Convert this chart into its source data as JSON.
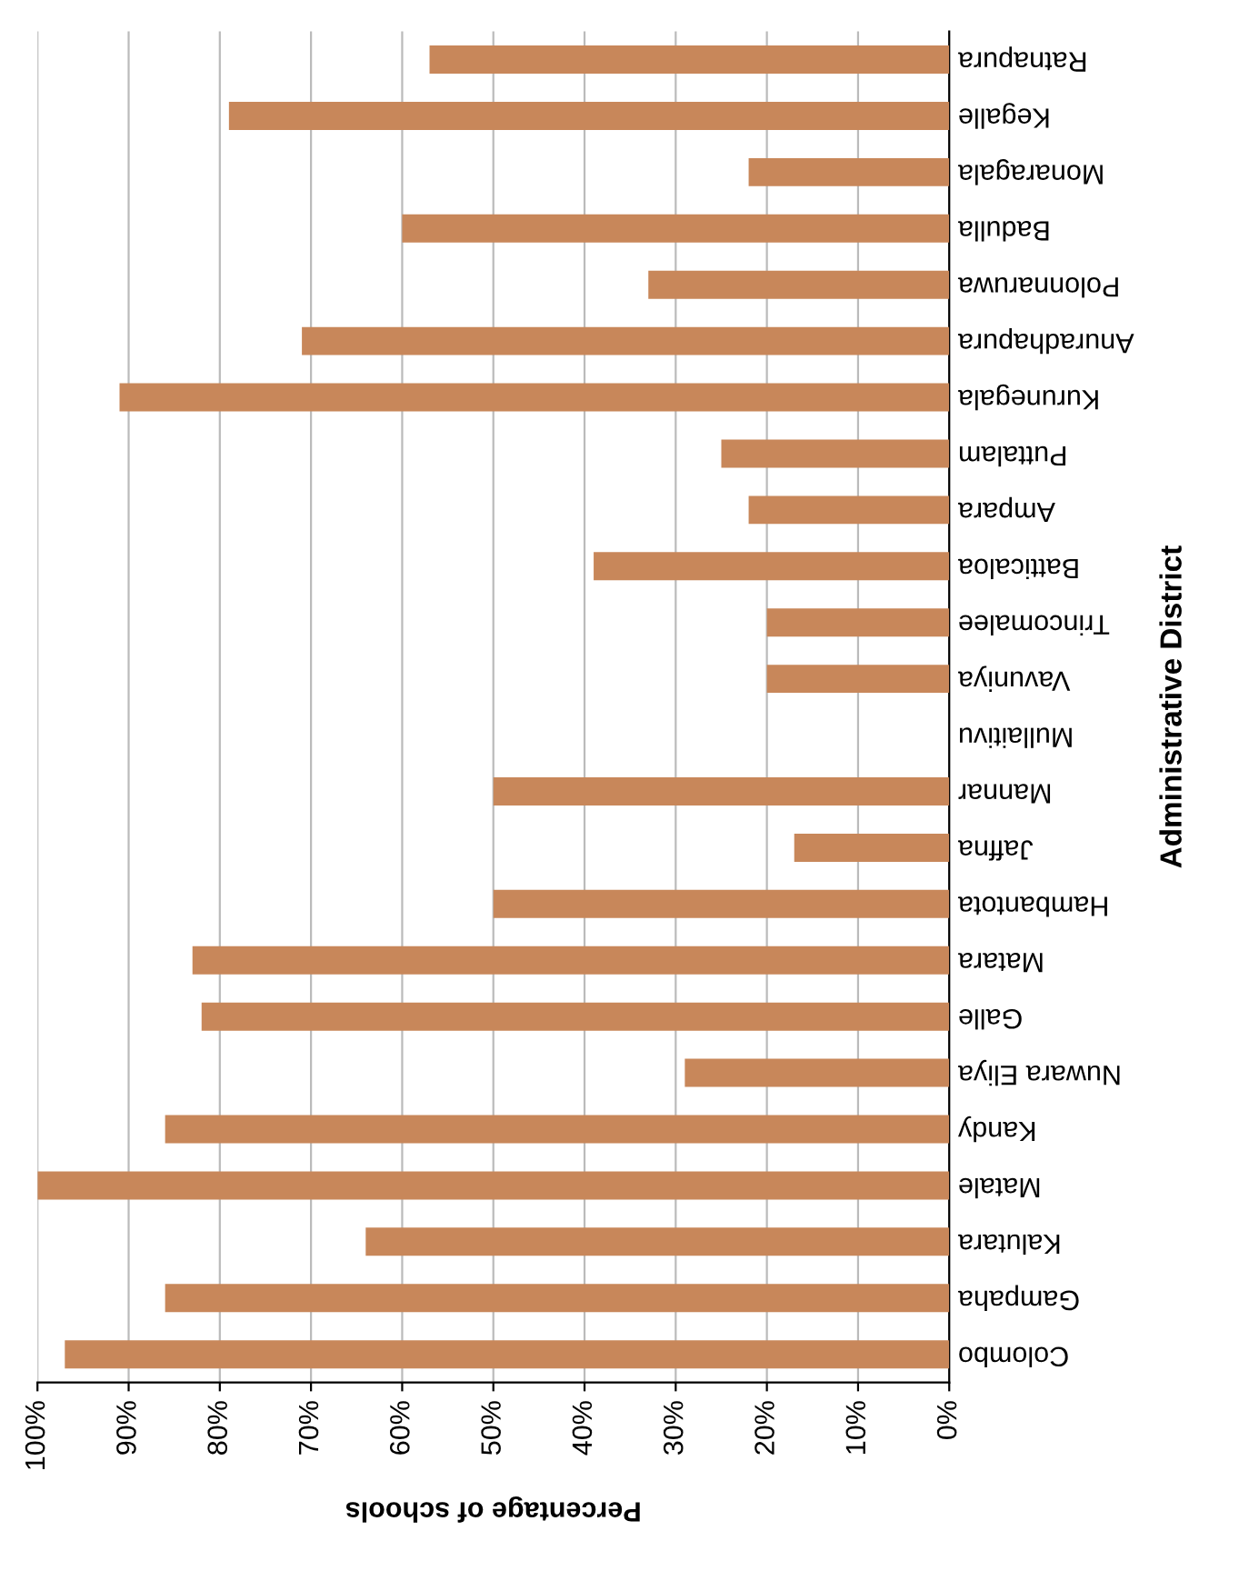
{
  "chart_data": {
    "type": "bar",
    "orientation": "horizontal",
    "xlabel": "Percentage of schools",
    "ylabel": "Administrative District",
    "categories": [
      "Ratnapura",
      "Kegalle",
      "Monaragala",
      "Badulla",
      "Polonnaruwa",
      "Anuradhapura",
      "Kurunegala",
      "Puttalam",
      "Ampara",
      "Batticaloa",
      "Trincomalee",
      "Vavuniya",
      "Mullaitivu",
      "Mannar",
      "Jaffna",
      "Hambantota",
      "Matara",
      "Galle",
      "Nuwara Eliya",
      "Kandy",
      "Matale",
      "Kalutara",
      "Gampaha",
      "Colombo"
    ],
    "values": [
      57,
      79,
      22,
      60,
      33,
      71,
      91,
      25,
      22,
      39,
      20,
      20,
      0,
      50,
      17,
      50,
      83,
      82,
      29,
      86,
      100,
      64,
      86,
      97
    ],
    "color": "#c8875a",
    "xlim": [
      100,
      0
    ],
    "xticks": [
      {
        "value": 100,
        "label": "100%"
      },
      {
        "value": 90,
        "label": "90%"
      },
      {
        "value": 80,
        "label": "80%"
      },
      {
        "value": 70,
        "label": "70%"
      },
      {
        "value": 60,
        "label": "60%"
      },
      {
        "value": 50,
        "label": "50%"
      },
      {
        "value": 40,
        "label": "40%"
      },
      {
        "value": 30,
        "label": "30%"
      },
      {
        "value": 20,
        "label": "20%"
      },
      {
        "value": 10,
        "label": "10%"
      },
      {
        "value": 0,
        "label": "0%"
      }
    ],
    "grid": "x"
  }
}
